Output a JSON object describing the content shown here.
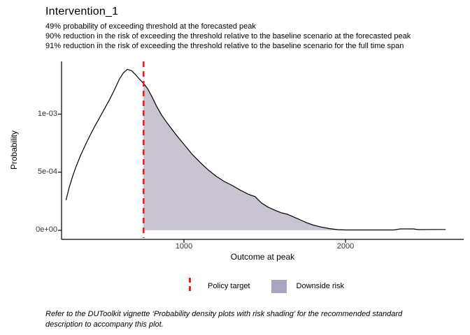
{
  "title": "Intervention_1",
  "subtitle_lines": [
    "49% probability of exceeding threshold at the forecasted peak",
    "90% reduction in the risk of exceeding the threshold relative to the baseline scenario at the forecasted peak",
    "91% reduction in the risk of exceeding the threshold relative to the baseline scenario for the full time span"
  ],
  "caption": {
    "lines": [
      "Refer to the DUToolkit vignette ‘Probability density plots with risk shading’ for the recommended standard",
      "description to accompany this plot."
    ]
  },
  "legend": {
    "policy_target_label": "Policy target",
    "downside_risk_label": "Downside risk"
  },
  "colors": {
    "policy_target": "#e8211c",
    "downside_risk_fill": "#c9c3d2",
    "downside_risk_legend": "#aba4bf",
    "density_line": "#000000",
    "axis_line": "#000000",
    "tick_text": "#333333",
    "background": "#ffffff"
  },
  "chart_data": {
    "type": "area",
    "title": "Intervention_1",
    "xlabel": "Outcome at peak",
    "ylabel": "Probability",
    "xlim": [
      240,
      2730
    ],
    "ylim": [
      0,
      0.00145
    ],
    "grid": false,
    "legend_position": "bottom",
    "x_ticks": [
      {
        "value": 1000,
        "label": "1000"
      },
      {
        "value": 2000,
        "label": "2000"
      }
    ],
    "y_ticks": [
      {
        "value": 0,
        "label": "0e+00"
      },
      {
        "value": 0.0005,
        "label": "5e-04"
      },
      {
        "value": 0.001,
        "label": "1e-03"
      }
    ],
    "policy_target_x": 750,
    "shade_range": [
      750,
      2000
    ],
    "series": [
      {
        "name": "density",
        "points": [
          [
            270,
            0.00026
          ],
          [
            290,
            0.00037
          ],
          [
            310,
            0.00046
          ],
          [
            330,
            0.00054
          ],
          [
            360,
            0.000645
          ],
          [
            390,
            0.000735
          ],
          [
            420,
            0.00082
          ],
          [
            450,
            0.0009
          ],
          [
            480,
            0.000975
          ],
          [
            510,
            0.00105
          ],
          [
            540,
            0.001125
          ],
          [
            570,
            0.00121
          ],
          [
            600,
            0.0013
          ],
          [
            625,
            0.001355
          ],
          [
            650,
            0.001385
          ],
          [
            675,
            0.001375
          ],
          [
            700,
            0.00134
          ],
          [
            725,
            0.0013
          ],
          [
            750,
            0.001265
          ],
          [
            775,
            0.00122
          ],
          [
            800,
            0.001155
          ],
          [
            830,
            0.00107
          ],
          [
            860,
            0.000995
          ],
          [
            890,
            0.000935
          ],
          [
            920,
            0.00088
          ],
          [
            950,
            0.000825
          ],
          [
            1000,
            0.00074
          ],
          [
            1050,
            0.000655
          ],
          [
            1100,
            0.000585
          ],
          [
            1150,
            0.00052
          ],
          [
            1200,
            0.000465
          ],
          [
            1250,
            0.00042
          ],
          [
            1300,
            0.000385
          ],
          [
            1350,
            0.000345
          ],
          [
            1400,
            0.00031
          ],
          [
            1440,
            0.00029
          ],
          [
            1480,
            0.000235
          ],
          [
            1520,
            0.0002
          ],
          [
            1560,
            0.000175
          ],
          [
            1600,
            0.000152
          ],
          [
            1640,
            0.000138
          ],
          [
            1680,
            0.000115
          ],
          [
            1720,
            9e-05
          ],
          [
            1760,
            6.5e-05
          ],
          [
            1800,
            4.5e-05
          ],
          [
            1850,
            2.8e-05
          ],
          [
            1900,
            1.5e-05
          ],
          [
            1950,
            6e-06
          ],
          [
            2000,
            3e-06
          ],
          [
            2100,
            3e-06
          ],
          [
            2200,
            3e-06
          ],
          [
            2300,
            3e-06
          ],
          [
            2340,
            1.2e-05
          ],
          [
            2420,
            1.2e-05
          ],
          [
            2450,
            6e-06
          ],
          [
            2540,
            7e-06
          ],
          [
            2620,
            7e-06
          ]
        ]
      }
    ]
  }
}
